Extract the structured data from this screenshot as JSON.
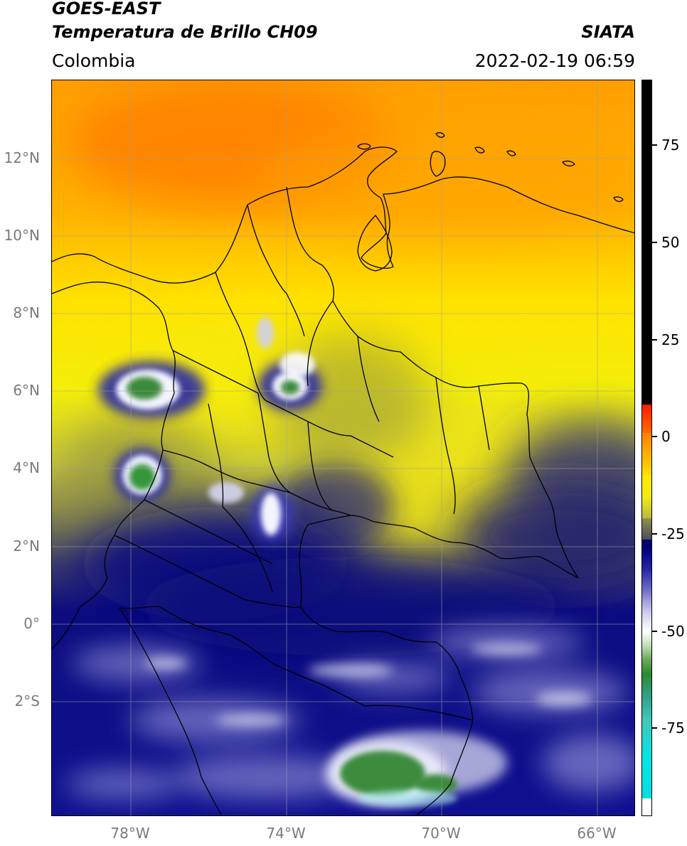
{
  "header": {
    "satellite": "GOES-EAST",
    "product": "Temperatura de Brillo CH09",
    "region": "Colombia",
    "source": "SIATA",
    "datetime": "2022-02-19 06:59"
  },
  "map": {
    "lon_range": [
      -80,
      -65
    ],
    "lat_range": [
      -5,
      14
    ],
    "lat_labels": [
      "12°N",
      "10°N",
      "8°N",
      "6°N",
      "4°N",
      "2°N",
      "0°",
      "2°S"
    ],
    "lon_labels": [
      "78°W",
      "74°W",
      "70°W",
      "66°W"
    ],
    "gridlines": true
  },
  "colorbar": {
    "tick_labels": [
      "75",
      "50",
      "25",
      "0",
      "-25",
      "-50",
      "-75"
    ],
    "colors": {
      "top": "#000000",
      "warm": "#ff6a00",
      "orange": "#ffa800",
      "yellow": "#fff000",
      "olive": "#c8c83a",
      "gray": "#575760",
      "navy": "#00007a",
      "blue": "#2b2bb0",
      "white": "#ffffff",
      "green": "#2e8a2e",
      "teal": "#33a08c",
      "cyan": "#00e6e6"
    }
  }
}
